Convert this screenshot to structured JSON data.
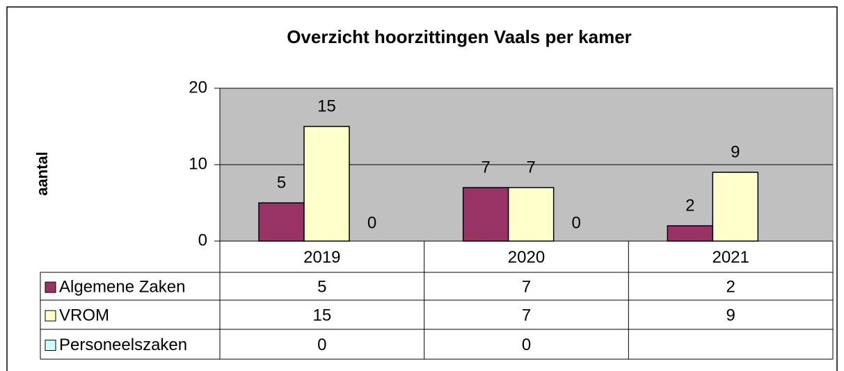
{
  "chart_data": {
    "type": "bar",
    "title": "Overzicht hoorzittingen Vaals per kamer",
    "y_label": "aantal",
    "categories": [
      "2019",
      "2020",
      "2021"
    ],
    "series": [
      {
        "name": "Algemene Zaken",
        "color": "#993366",
        "values": [
          5,
          7,
          2
        ]
      },
      {
        "name": "VROM",
        "color": "#ffffcc",
        "values": [
          15,
          7,
          9
        ]
      },
      {
        "name": "Personeelszaken",
        "color": "#ccffff",
        "values": [
          0,
          0,
          null
        ]
      }
    ],
    "ylim": [
      0,
      20
    ],
    "yticks": [
      0,
      10,
      20
    ],
    "grid": true,
    "plot_background": "#c0c0c0",
    "data_table": true
  }
}
